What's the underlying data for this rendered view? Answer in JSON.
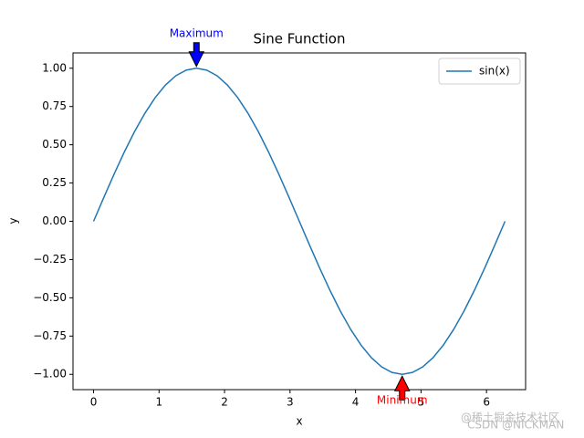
{
  "chart_data": {
    "type": "line",
    "title": "Sine Function",
    "xlabel": "x",
    "ylabel": "y",
    "x": [
      0,
      0.1571,
      0.3142,
      0.4712,
      0.6283,
      0.7854,
      0.9425,
      1.0996,
      1.2566,
      1.4137,
      1.5708,
      1.7279,
      1.885,
      2.042,
      2.1991,
      2.3562,
      2.5133,
      2.6704,
      2.8274,
      2.9845,
      3.1416,
      3.2987,
      3.4558,
      3.6128,
      3.7699,
      3.927,
      4.0841,
      4.2412,
      4.3982,
      4.5553,
      4.7124,
      4.8695,
      5.0265,
      5.1836,
      5.3407,
      5.4978,
      5.6549,
      5.8119,
      5.969,
      6.1261,
      6.2832
    ],
    "series": [
      {
        "name": "sin(x)",
        "color": "#1f77b4",
        "values": [
          0,
          0.1564,
          0.309,
          0.454,
          0.5878,
          0.7071,
          0.809,
          0.891,
          0.9511,
          0.9877,
          1,
          0.9877,
          0.9511,
          0.891,
          0.809,
          0.7071,
          0.5878,
          0.454,
          0.309,
          0.1564,
          0,
          -0.1564,
          -0.309,
          -0.454,
          -0.5878,
          -0.7071,
          -0.809,
          -0.891,
          -0.9511,
          -0.9877,
          -1,
          -0.9877,
          -0.9511,
          -0.891,
          -0.809,
          -0.7071,
          -0.5878,
          -0.454,
          -0.309,
          -0.1564,
          0
        ]
      }
    ],
    "xlim": [
      -0.314,
      6.597
    ],
    "ylim": [
      -1.1,
      1.1
    ],
    "xticks": [
      0,
      1,
      2,
      3,
      4,
      5,
      6
    ],
    "yticks": [
      {
        "value": -1,
        "label": "−1.00"
      },
      {
        "value": -0.75,
        "label": "−0.75"
      },
      {
        "value": -0.5,
        "label": "−0.50"
      },
      {
        "value": -0.25,
        "label": "−0.25"
      },
      {
        "value": 0,
        "label": "0.00"
      },
      0.25,
      {
        "value": 0.5,
        "label": "0.50"
      },
      0.75,
      {
        "value": 1,
        "label": "1.00"
      }
    ],
    "legend": "upper right",
    "annotations": [
      {
        "text": "Maximum",
        "x": 1.5708,
        "y": 1,
        "color": "#0000ff"
      },
      {
        "text": "Minimum",
        "x": 4.7124,
        "y": -1,
        "color": "#ff0000"
      }
    ]
  },
  "watermark": [
    "@稀土掘金技术社区",
    "CSDN @NICKMAN"
  ]
}
